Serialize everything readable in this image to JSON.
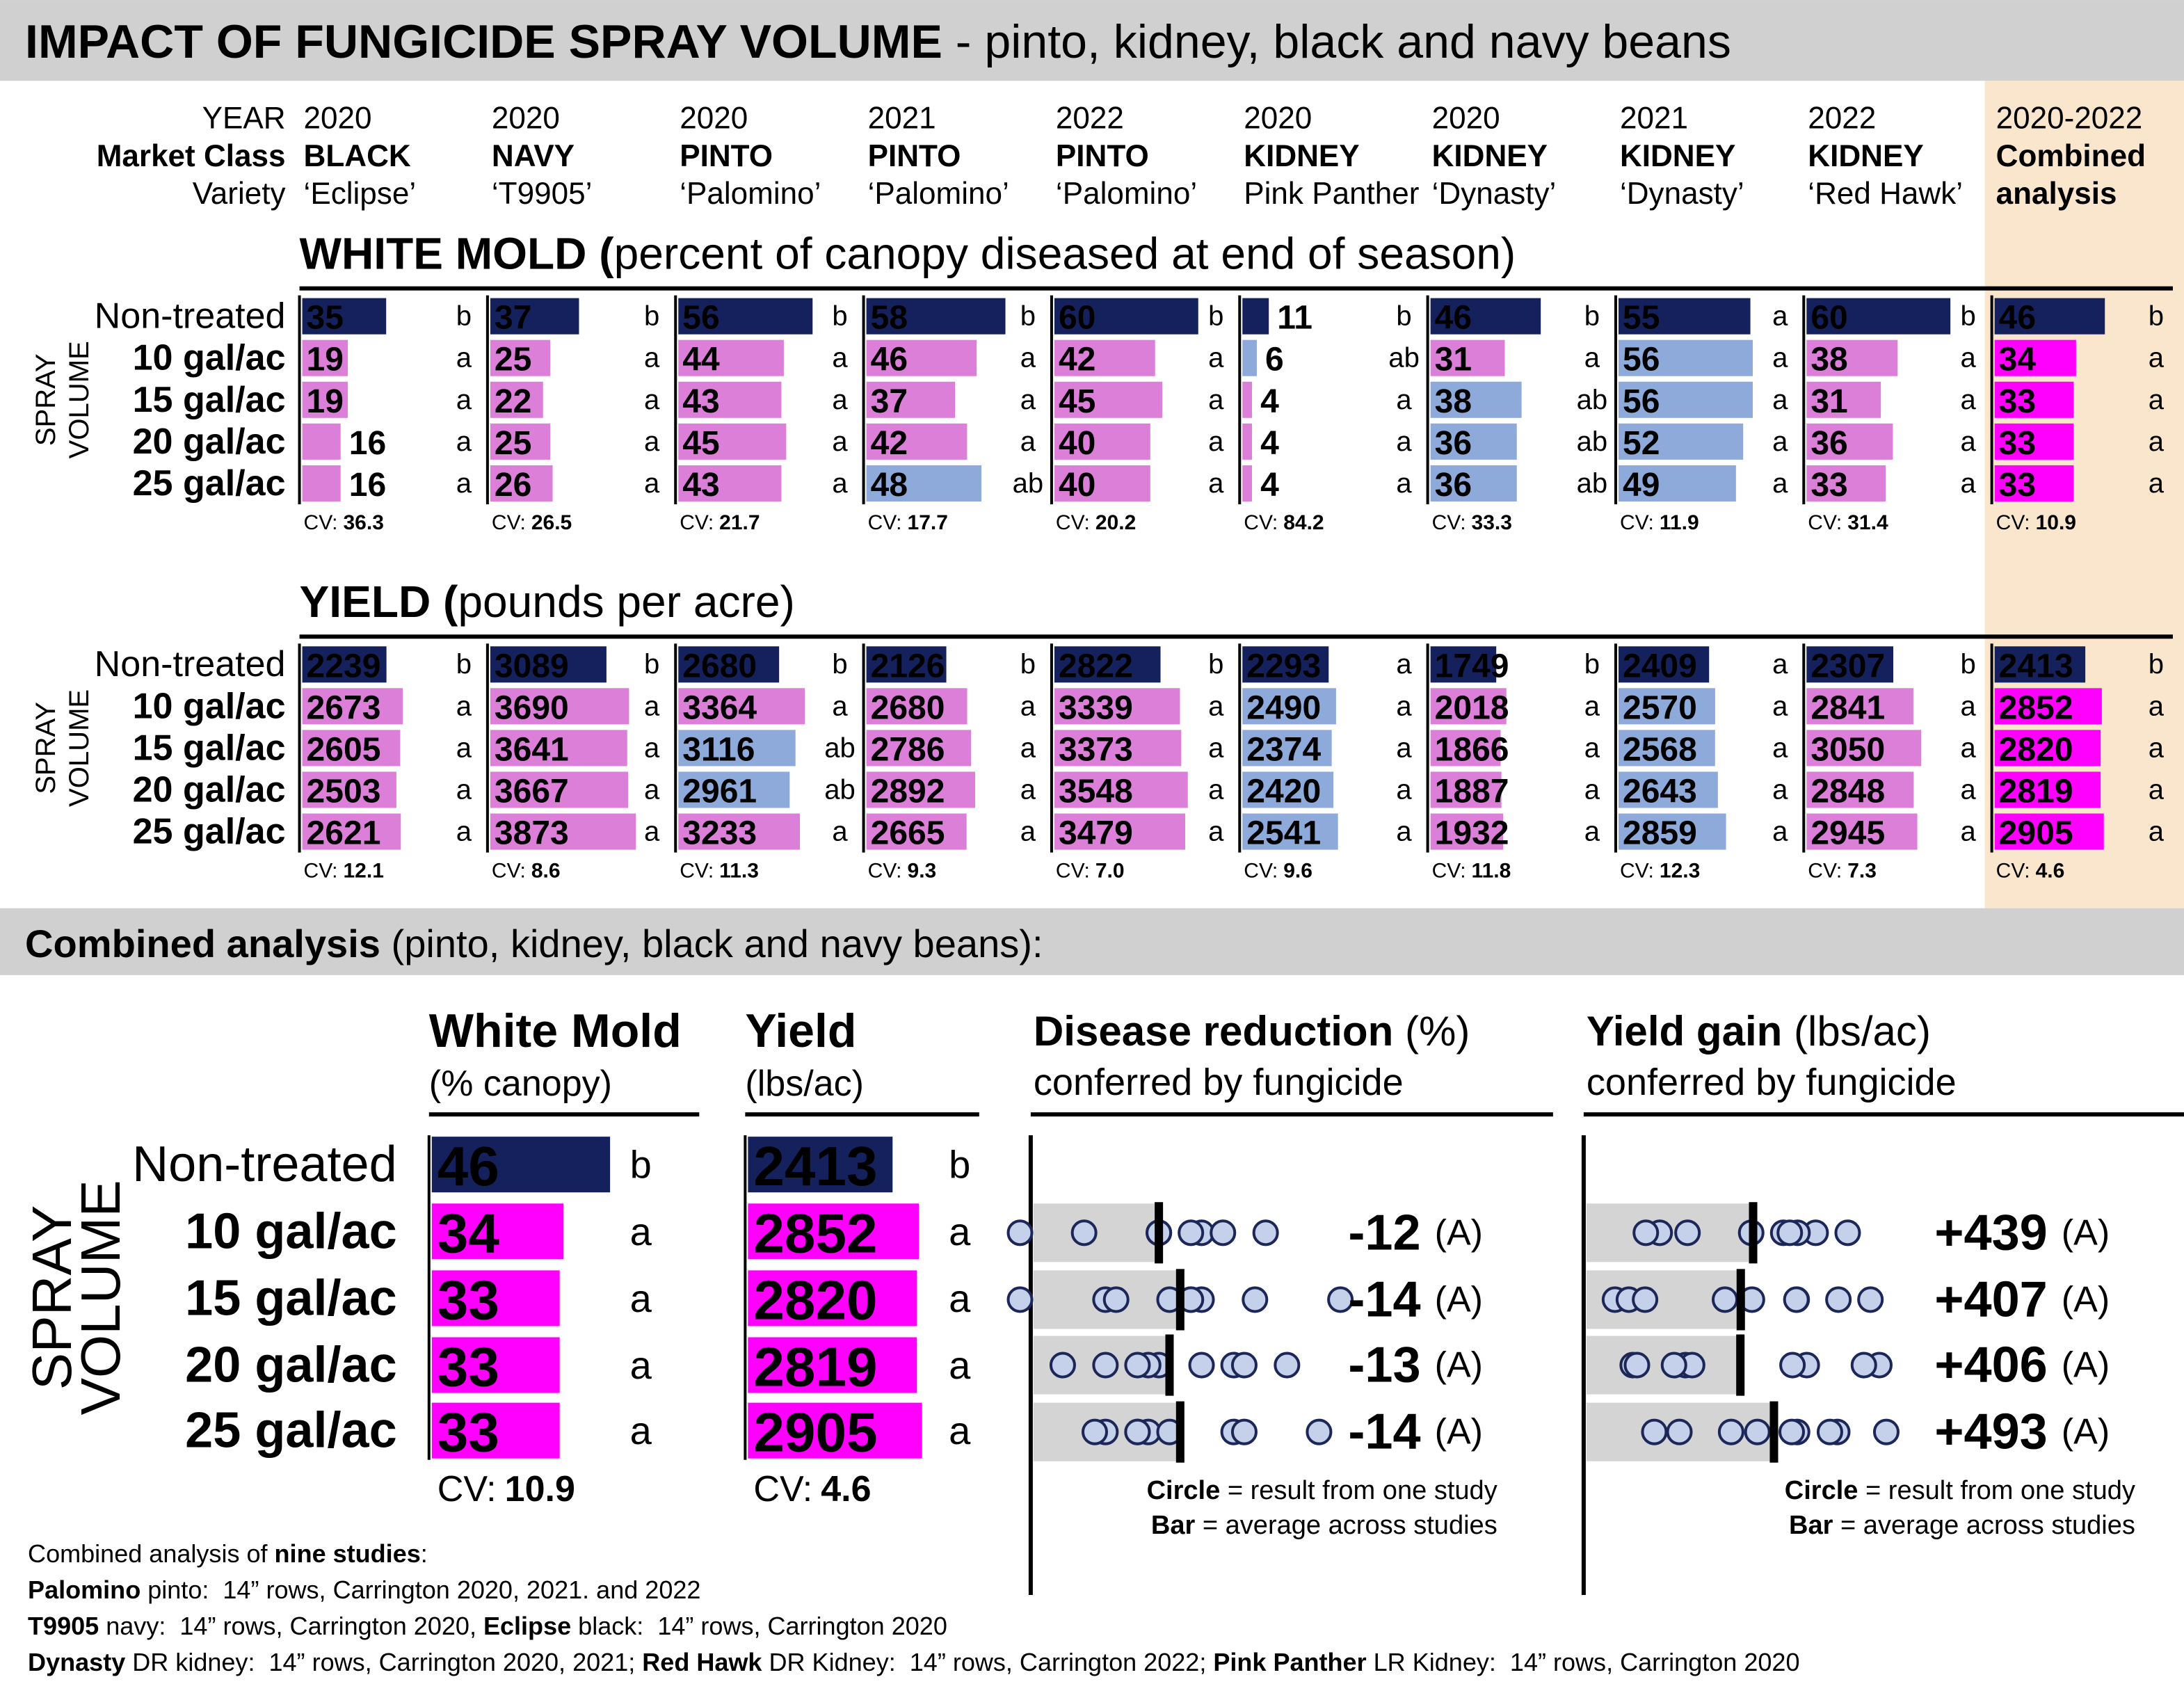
{
  "header": {
    "title_bold": "IMPACT OF FUNGICIDE SPRAY VOLUME",
    "title_rest": " - pinto, kidney, black and navy beans"
  },
  "row_labels": [
    "YEAR",
    "Market Class",
    "Variety"
  ],
  "treatments": [
    "Non-treated",
    "10 gal/ac",
    "15 gal/ac",
    "20 gal/ac",
    "25 gal/ac"
  ],
  "side_label": [
    "SPRAY",
    "VOLUME"
  ],
  "cv_label": "CV:",
  "white_mold": {
    "title_bold": "WHITE MOLD (",
    "title_rest": "percent of canopy diseased at end of season)",
    "xlim": [
      0,
      61
    ]
  },
  "yield": {
    "title_bold": "YIELD (",
    "title_rest": "pounds per acre)",
    "xlim": [
      0,
      4000
    ]
  },
  "studies": [
    {
      "year": "2020",
      "class": "BLACK",
      "variety": "‘Eclipse’",
      "white_mold": {
        "values": [
          35,
          19,
          19,
          16,
          16
        ],
        "letters": [
          "b",
          "a",
          "a",
          "a",
          "a"
        ],
        "colors": [
          "#14215c",
          "#dc7fd8",
          "#dc7fd8",
          "#dc7fd8",
          "#dc7fd8"
        ],
        "cv": "36.3"
      },
      "yield": {
        "values": [
          2239,
          2673,
          2605,
          2503,
          2621
        ],
        "letters": [
          "b",
          "a",
          "a",
          "a",
          "a"
        ],
        "colors": [
          "#14215c",
          "#dc7fd8",
          "#dc7fd8",
          "#dc7fd8",
          "#dc7fd8"
        ],
        "cv": "12.1"
      }
    },
    {
      "year": "2020",
      "class": "NAVY",
      "variety": "‘T9905’",
      "white_mold": {
        "values": [
          37,
          25,
          22,
          25,
          26
        ],
        "letters": [
          "b",
          "a",
          "a",
          "a",
          "a"
        ],
        "colors": [
          "#14215c",
          "#dc7fd8",
          "#dc7fd8",
          "#dc7fd8",
          "#dc7fd8"
        ],
        "cv": "26.5"
      },
      "yield": {
        "values": [
          3089,
          3690,
          3641,
          3667,
          3873
        ],
        "letters": [
          "b",
          "a",
          "a",
          "a",
          "a"
        ],
        "colors": [
          "#14215c",
          "#dc7fd8",
          "#dc7fd8",
          "#dc7fd8",
          "#dc7fd8"
        ],
        "cv": "8.6"
      }
    },
    {
      "year": "2020",
      "class": "PINTO",
      "variety": "‘Palomino’",
      "white_mold": {
        "values": [
          56,
          44,
          43,
          45,
          43
        ],
        "letters": [
          "b",
          "a",
          "a",
          "a",
          "a"
        ],
        "colors": [
          "#14215c",
          "#dc7fd8",
          "#dc7fd8",
          "#dc7fd8",
          "#dc7fd8"
        ],
        "cv": "21.7"
      },
      "yield": {
        "values": [
          2680,
          3364,
          3116,
          2961,
          3233
        ],
        "letters": [
          "b",
          "a",
          "ab",
          "ab",
          "a"
        ],
        "colors": [
          "#14215c",
          "#dc7fd8",
          "#8eaadb",
          "#8eaadb",
          "#dc7fd8"
        ],
        "cv": "11.3"
      }
    },
    {
      "year": "2021",
      "class": "PINTO",
      "variety": "‘Palomino’",
      "white_mold": {
        "values": [
          58,
          46,
          37,
          42,
          48
        ],
        "letters": [
          "b",
          "a",
          "a",
          "a",
          "ab"
        ],
        "colors": [
          "#14215c",
          "#dc7fd8",
          "#dc7fd8",
          "#dc7fd8",
          "#8eaadb"
        ],
        "cv": "17.7"
      },
      "yield": {
        "values": [
          2126,
          2680,
          2786,
          2892,
          2665
        ],
        "letters": [
          "b",
          "a",
          "a",
          "a",
          "a"
        ],
        "colors": [
          "#14215c",
          "#dc7fd8",
          "#dc7fd8",
          "#dc7fd8",
          "#dc7fd8"
        ],
        "cv": "9.3"
      }
    },
    {
      "year": "2022",
      "class": "PINTO",
      "variety": "‘Palomino’",
      "white_mold": {
        "values": [
          60,
          42,
          45,
          40,
          40
        ],
        "letters": [
          "b",
          "a",
          "a",
          "a",
          "a"
        ],
        "colors": [
          "#14215c",
          "#dc7fd8",
          "#dc7fd8",
          "#dc7fd8",
          "#dc7fd8"
        ],
        "cv": "20.2"
      },
      "yield": {
        "values": [
          2822,
          3339,
          3373,
          3548,
          3479
        ],
        "letters": [
          "b",
          "a",
          "a",
          "a",
          "a"
        ],
        "colors": [
          "#14215c",
          "#dc7fd8",
          "#dc7fd8",
          "#dc7fd8",
          "#dc7fd8"
        ],
        "cv": "7.0"
      }
    },
    {
      "year": "2020",
      "class": "KIDNEY",
      "variety": "Pink Panther",
      "white_mold": {
        "values": [
          11,
          6,
          4,
          4,
          4
        ],
        "letters": [
          "b",
          "ab",
          "a",
          "a",
          "a"
        ],
        "colors": [
          "#14215c",
          "#8eaadb",
          "#dc7fd8",
          "#dc7fd8",
          "#dc7fd8"
        ],
        "cv": "84.2"
      },
      "yield": {
        "values": [
          2293,
          2490,
          2374,
          2420,
          2541
        ],
        "letters": [
          "a",
          "a",
          "a",
          "a",
          "a"
        ],
        "colors": [
          "#14215c",
          "#8eaadb",
          "#8eaadb",
          "#8eaadb",
          "#8eaadb"
        ],
        "cv": "9.6"
      }
    },
    {
      "year": "2020",
      "class": "KIDNEY",
      "variety": "‘Dynasty’",
      "white_mold": {
        "values": [
          46,
          31,
          38,
          36,
          36
        ],
        "letters": [
          "b",
          "a",
          "ab",
          "ab",
          "ab"
        ],
        "colors": [
          "#14215c",
          "#dc7fd8",
          "#8eaadb",
          "#8eaadb",
          "#8eaadb"
        ],
        "cv": "33.3"
      },
      "yield": {
        "values": [
          1749,
          2018,
          1866,
          1887,
          1932
        ],
        "letters": [
          "b",
          "a",
          "a",
          "a",
          "a"
        ],
        "colors": [
          "#14215c",
          "#dc7fd8",
          "#dc7fd8",
          "#dc7fd8",
          "#dc7fd8"
        ],
        "cv": "11.8"
      }
    },
    {
      "year": "2021",
      "class": "KIDNEY",
      "variety": "‘Dynasty’",
      "white_mold": {
        "values": [
          55,
          56,
          56,
          52,
          49
        ],
        "letters": [
          "a",
          "a",
          "a",
          "a",
          "a"
        ],
        "colors": [
          "#14215c",
          "#8eaadb",
          "#8eaadb",
          "#8eaadb",
          "#8eaadb"
        ],
        "cv": "11.9"
      },
      "yield": {
        "values": [
          2409,
          2570,
          2568,
          2643,
          2859
        ],
        "letters": [
          "a",
          "a",
          "a",
          "a",
          "a"
        ],
        "colors": [
          "#14215c",
          "#8eaadb",
          "#8eaadb",
          "#8eaadb",
          "#8eaadb"
        ],
        "cv": "12.3"
      }
    },
    {
      "year": "2022",
      "class": "KIDNEY",
      "variety": "‘Red Hawk’",
      "white_mold": {
        "values": [
          60,
          38,
          31,
          36,
          33
        ],
        "letters": [
          "b",
          "a",
          "a",
          "a",
          "a"
        ],
        "colors": [
          "#14215c",
          "#dc7fd8",
          "#dc7fd8",
          "#dc7fd8",
          "#dc7fd8"
        ],
        "cv": "31.4"
      },
      "yield": {
        "values": [
          2307,
          2841,
          3050,
          2848,
          2945
        ],
        "letters": [
          "b",
          "a",
          "a",
          "a",
          "a"
        ],
        "colors": [
          "#14215c",
          "#dc7fd8",
          "#dc7fd8",
          "#dc7fd8",
          "#dc7fd8"
        ],
        "cv": "7.3"
      }
    },
    {
      "year": "2020-2022",
      "class": "Combined",
      "variety": "analysis",
      "white_mold": {
        "values": [
          46,
          34,
          33,
          33,
          33
        ],
        "letters": [
          "b",
          "a",
          "a",
          "a",
          "a"
        ],
        "colors": [
          "#14215c",
          "#ff00ff",
          "#ff00ff",
          "#ff00ff",
          "#ff00ff"
        ],
        "cv": "10.9"
      },
      "yield": {
        "values": [
          2413,
          2852,
          2820,
          2819,
          2905
        ],
        "letters": [
          "b",
          "a",
          "a",
          "a",
          "a"
        ],
        "colors": [
          "#14215c",
          "#ff00ff",
          "#ff00ff",
          "#ff00ff",
          "#ff00ff"
        ],
        "cv": "4.6"
      }
    }
  ],
  "combined": {
    "title_bold": "Combined analysis",
    "title_rest": " (pinto, kidney, black and navy beans):",
    "white_mold": {
      "title": "White Mold",
      "subtitle": "(% canopy)",
      "xlim": [
        0,
        46
      ]
    },
    "yield": {
      "title": "Yield",
      "subtitle": "(lbs/ac)",
      "xlim": [
        0,
        2905
      ]
    },
    "disease_reduction": {
      "title_bold": "Disease reduction",
      "title_rest": " (%)",
      "subtitle": "conferred by fungicide",
      "values": [
        -12,
        -14,
        -13,
        -14
      ],
      "letters": [
        "(A)",
        "(A)",
        "(A)",
        "(A)"
      ],
      "xlim": [
        0,
        -30
      ],
      "points": [
        [
          -16,
          -12,
          -12,
          -12,
          -18,
          -5,
          -15,
          1,
          -22
        ],
        [
          -16,
          -15,
          -13,
          -21,
          -15,
          -7,
          -8,
          1,
          -29
        ],
        [
          -19,
          -12,
          -11,
          -16,
          -20,
          -7,
          -10,
          -3,
          -24
        ],
        [
          -19,
          -11,
          -13,
          -10,
          -20,
          -7,
          -10,
          -6,
          -27
        ]
      ]
    },
    "yield_gain": {
      "title_bold": "Yield gain",
      "title_rest": " (lbs/ac)",
      "subtitle": "conferred by fungicide",
      "values": [
        439,
        407,
        406,
        493
      ],
      "value_labels": [
        "+439",
        "+407",
        "+406",
        "+493"
      ],
      "letters": [
        "(A)",
        "(A)",
        "(A)",
        "(A)"
      ],
      "xlim": [
        0,
        830
      ],
      "points": [
        [
          434,
          601,
          684,
          554,
          517,
          197,
          269,
          161,
          534
        ],
        [
          366,
          552,
          436,
          660,
          551,
          81,
          117,
          159,
          743
        ],
        [
          264,
          578,
          281,
          766,
          726,
          127,
          138,
          234,
          541
        ],
        [
          382,
          784,
          553,
          539,
          657,
          248,
          183,
          450,
          638
        ]
      ]
    },
    "legend": [
      {
        "bold": "Circle",
        "rest": " = result from one study"
      },
      {
        "bold": "Bar",
        "rest": " = average across studies"
      }
    ]
  },
  "footnotes": [
    [
      {
        "text": "Combined analysis of ",
        "bold": false
      },
      {
        "text": "nine studies",
        "bold": true
      },
      {
        "text": ":",
        "bold": false
      }
    ],
    [
      {
        "text": "Palomino",
        "bold": true
      },
      {
        "text": " pinto:  14” rows, Carrington 2020, 2021. and 2022",
        "bold": false
      }
    ],
    [
      {
        "text": "T9905",
        "bold": true
      },
      {
        "text": " navy:  14” rows, Carrington 2020, ",
        "bold": false
      },
      {
        "text": "Eclipse",
        "bold": true
      },
      {
        "text": " black:  14” rows, Carrington 2020",
        "bold": false
      }
    ],
    [
      {
        "text": "Dynasty",
        "bold": true
      },
      {
        "text": " DR kidney:  14” rows, Carrington 2020, 2021; ",
        "bold": false
      },
      {
        "text": "Red Hawk",
        "bold": true
      },
      {
        "text": " DR Kidney:  14” rows, Carrington 2022; ",
        "bold": false
      },
      {
        "text": "Pink Panther",
        "bold": true
      },
      {
        "text": " LR Kidney:  14” rows, Carrington 2020",
        "bold": false
      }
    ]
  ]
}
